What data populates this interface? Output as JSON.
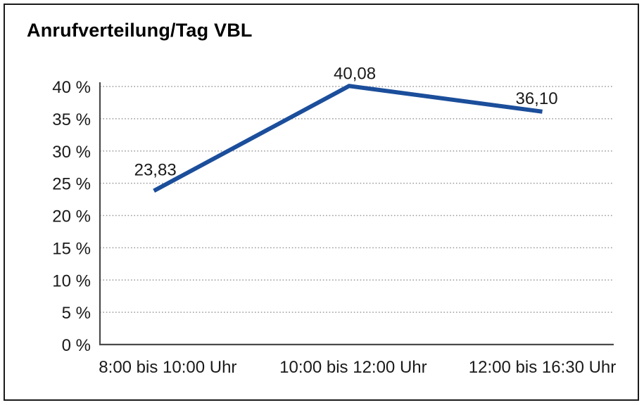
{
  "title": "Anrufverteilung/Tag VBL",
  "colors": {
    "background": "#ffffff",
    "border": "#1a1a1a",
    "line": "#1b4e9b",
    "grid": "#9b9b9b",
    "axis": "#4a4a4a",
    "text": "#1a1a1a"
  },
  "chart_data": {
    "type": "line",
    "title": "Anrufverteilung/Tag VBL",
    "categories": [
      "8:00 bis 10:00 Uhr",
      "10:00 bis 12:00 Uhr",
      "12:00 bis 16:30 Uhr"
    ],
    "series": [
      {
        "name": "Anrufverteilung/Tag VBL",
        "values": [
          23.83,
          40.08,
          36.1
        ]
      }
    ],
    "point_labels": [
      "23,83",
      "40,08",
      "36,10"
    ],
    "xlabel": "",
    "ylabel": "",
    "ylim": [
      0,
      40
    ],
    "ytick_step": 5,
    "ytick_labels": [
      "0 %",
      "5 %",
      "10 %",
      "15 %",
      "20 %",
      "25 %",
      "30 %",
      "35 %",
      "40 %"
    ],
    "grid": "horizontal-dotted",
    "legend": "none"
  }
}
